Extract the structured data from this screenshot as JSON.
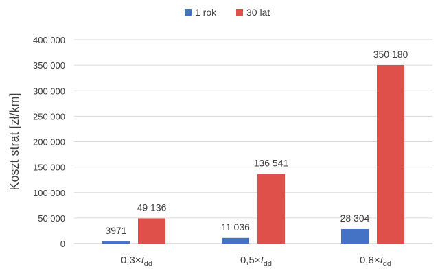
{
  "chart_data": {
    "type": "bar",
    "ylabel": "Koszt strat [zł/km]",
    "xlabel": "",
    "ylim": [
      0,
      400000
    ],
    "ytick_step": 50000,
    "ytick_labels": [
      "0",
      "50 000",
      "100 000",
      "150 000",
      "200 000",
      "250 000",
      "300 000",
      "350 000",
      "400 000"
    ],
    "grid": true,
    "legend_position": "top-center",
    "categories": [
      {
        "prefix": "0,3×",
        "var": "I",
        "sub": "dd"
      },
      {
        "prefix": "0,5×",
        "var": "I",
        "sub": "dd"
      },
      {
        "prefix": "0,8×",
        "var": "I",
        "sub": "dd"
      }
    ],
    "series": [
      {
        "name": "1 rok",
        "color": "#4472C4",
        "values": [
          3971,
          11036,
          28304
        ],
        "labels": [
          "3971",
          "11 036",
          "28 304"
        ]
      },
      {
        "name": "30 lat",
        "color": "#E0504A",
        "values": [
          49136,
          136541,
          350180
        ],
        "labels": [
          "49 136",
          "136 541",
          "350 180"
        ]
      }
    ]
  }
}
